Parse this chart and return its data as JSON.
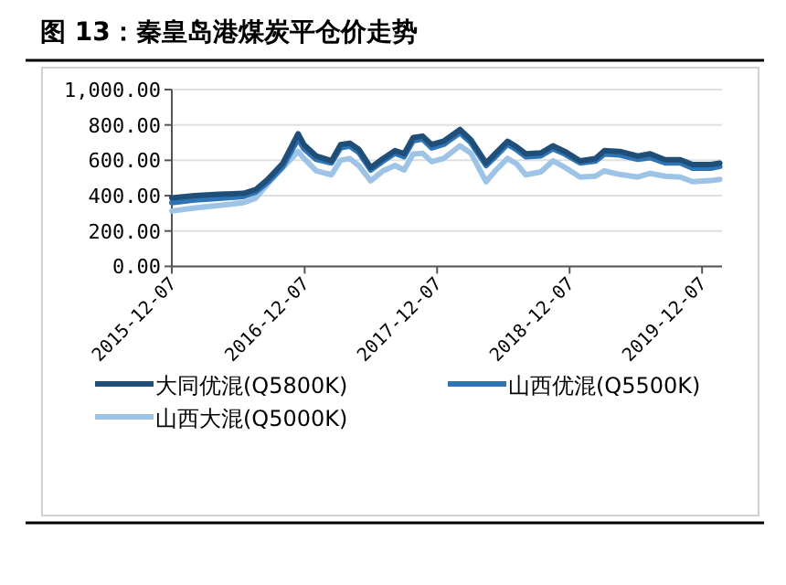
{
  "chart_data": {
    "type": "line",
    "title": "图 13：秦皇岛港煤炭平仓价走势",
    "x": [
      "2015-12-07",
      "2016-02-08",
      "2016-04-15",
      "2016-06-21",
      "2016-07-25",
      "2016-08-27",
      "2016-10-08",
      "2016-11-19",
      "2016-12-05",
      "2017-01-08",
      "2017-02-19",
      "2017-03-16",
      "2017-04-10",
      "2017-05-05",
      "2017-06-07",
      "2017-07-11",
      "2017-08-13",
      "2017-09-07",
      "2017-10-02",
      "2017-10-28",
      "2017-11-22",
      "2017-12-25",
      "2018-02-08",
      "2018-03-10",
      "2018-04-21",
      "2018-05-16",
      "2018-06-19",
      "2018-07-14",
      "2018-08-08",
      "2018-09-19",
      "2018-10-22",
      "2018-11-24",
      "2019-01-05",
      "2019-02-16",
      "2019-03-13",
      "2019-04-24",
      "2019-06-13",
      "2019-07-17",
      "2019-08-27",
      "2019-10-08",
      "2019-11-11",
      "2019-12-31",
      "2020-01-25"
    ],
    "series": [
      {
        "name": "大同优混(Q5800K)",
        "color": "#1f4e79",
        "values": [
          387,
          400,
          408,
          413,
          434,
          492,
          584,
          750,
          689,
          624,
          597,
          689,
          697,
          663,
          558,
          610,
          655,
          637,
          729,
          737,
          689,
          708,
          774,
          716,
          584,
          637,
          708,
          676,
          637,
          642,
          682,
          650,
          597,
          610,
          655,
          650,
          624,
          637,
          603,
          603,
          576,
          576,
          584
        ]
      },
      {
        "name": "山西优混(Q5500K)",
        "color": "#2e75b6",
        "values": [
          360,
          375,
          385,
          395,
          420,
          475,
          565,
          720,
          665,
          605,
          585,
          670,
          680,
          645,
          545,
          595,
          640,
          620,
          710,
          720,
          670,
          690,
          755,
          700,
          570,
          620,
          690,
          660,
          620,
          625,
          665,
          635,
          585,
          595,
          635,
          630,
          605,
          615,
          585,
          585,
          555,
          555,
          565
        ]
      },
      {
        "name": "山西大混(Q5000K)",
        "color": "#9dc3e6",
        "values": [
          313,
          330,
          345,
          360,
          385,
          466,
          560,
          650,
          610,
          540,
          518,
          600,
          610,
          570,
          484,
          540,
          571,
          545,
          635,
          640,
          592,
          610,
          682,
          640,
          479,
          540,
          610,
          580,
          518,
          535,
          597,
          560,
          505,
          510,
          540,
          520,
          505,
          526,
          510,
          505,
          479,
          485,
          492
        ]
      }
    ],
    "xlim": [
      "2015-12-07",
      "2020-01-31"
    ],
    "xticks": [
      {
        "value": "2015-12-07",
        "label": "2015-12-07"
      },
      {
        "value": "2016-12-07",
        "label": "2016-12-07"
      },
      {
        "value": "2017-12-07",
        "label": "2017-12-07"
      },
      {
        "value": "2018-12-07",
        "label": "2018-12-07"
      },
      {
        "value": "2019-12-07",
        "label": "2019-12-07"
      }
    ],
    "ylim": [
      0,
      1000
    ],
    "yticks": [
      {
        "value": 0,
        "label": "0.00"
      },
      {
        "value": 200,
        "label": "200.00"
      },
      {
        "value": 400,
        "label": "400.00"
      },
      {
        "value": 600,
        "label": "600.00"
      },
      {
        "value": 800,
        "label": "800.00"
      },
      {
        "value": 1000,
        "label": "1,000.00"
      }
    ],
    "grid": "y",
    "legend": "bottom",
    "marker": "none",
    "line_style": "solid"
  }
}
